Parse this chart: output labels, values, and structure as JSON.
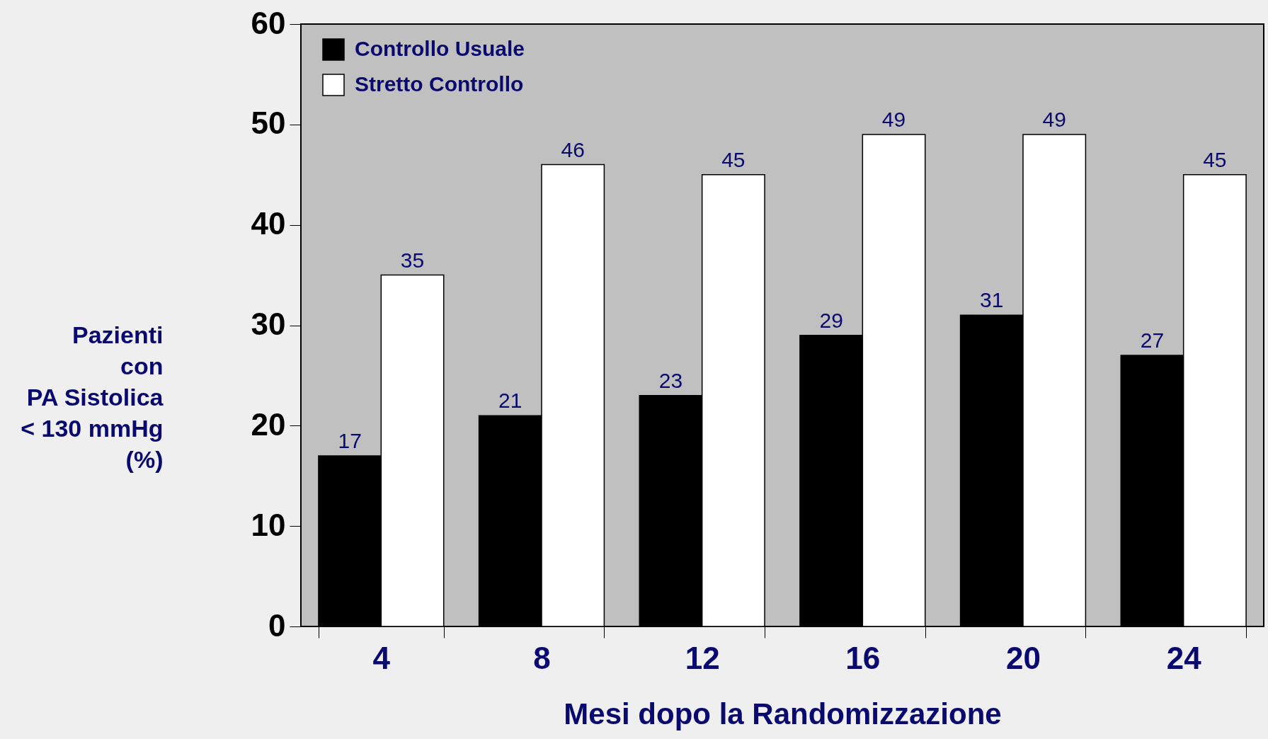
{
  "chart_data": {
    "type": "bar",
    "xlabel": "Mesi dopo la Randomizzazione",
    "ylabel": "Pazienti\ncon\nPA Sistolica\n< 130 mmHg\n(%)",
    "categories": [
      "4",
      "8",
      "12",
      "16",
      "20",
      "24"
    ],
    "series": [
      {
        "name": "Controllo Usuale",
        "color": "#000000",
        "values": [
          17,
          21,
          23,
          29,
          31,
          27
        ]
      },
      {
        "name": "Stretto  Controllo",
        "color": "#ffffff",
        "values": [
          35,
          46,
          45,
          49,
          49,
          45
        ]
      }
    ],
    "ylim": [
      0,
      60
    ],
    "yticks": [
      0,
      10,
      20,
      30,
      40,
      50,
      60
    ],
    "data_labels": true,
    "grid": false,
    "legend": "top left"
  }
}
